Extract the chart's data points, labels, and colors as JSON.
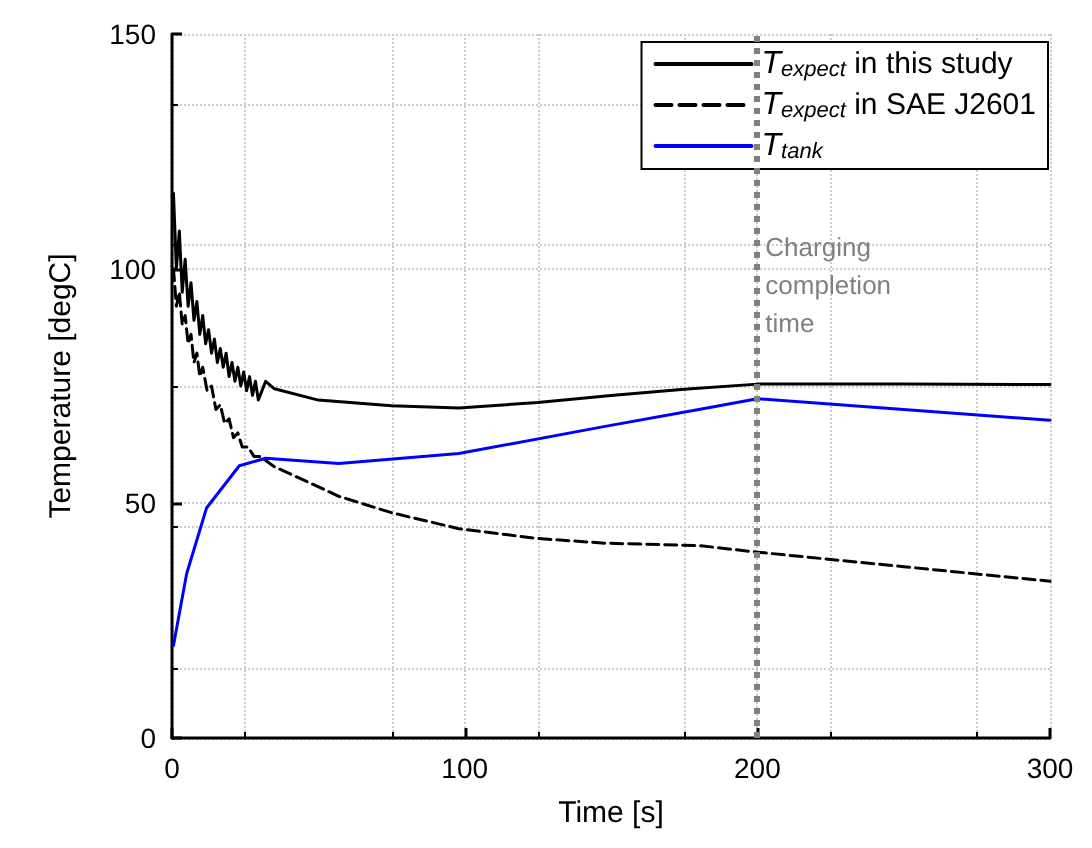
{
  "chart_data": {
    "type": "line",
    "xlabel": "Time [s]",
    "ylabel": "Temperature [degC]",
    "xlim": [
      0,
      300
    ],
    "xticks": [
      0,
      100,
      200,
      300
    ],
    "ylim": [
      0,
      150
    ],
    "yticks": [
      0,
      50,
      100,
      150
    ],
    "grid": true,
    "legend": "top right",
    "marker": "none",
    "series": [
      {
        "name": "T$_{expect}$ in this study",
        "color": "#000000",
        "line_style": "solid",
        "x": [
          0.5,
          1.5,
          2.5,
          3.5,
          4.5,
          5.5,
          6.5,
          7.5,
          8.5,
          9.5,
          10.5,
          11.5,
          12.5,
          13.5,
          14.5,
          15.5,
          16.5,
          17.5,
          18.5,
          19.5,
          20.5,
          21.5,
          22.5,
          23.5,
          24.5,
          25.5,
          26.5,
          27.5,
          28.5,
          29.5,
          32,
          35,
          50,
          75,
          98,
          125,
          150,
          175,
          200,
          250,
          300
        ],
        "values": [
          116,
          100,
          108,
          95,
          102,
          92,
          97,
          89,
          93,
          86,
          90,
          84,
          87,
          82,
          85,
          80,
          83,
          79,
          82,
          77,
          80,
          76,
          79,
          75,
          78,
          74,
          77,
          73,
          76,
          72,
          76,
          74.4,
          72,
          70.8,
          70.3,
          71.5,
          73,
          74.3,
          75.4,
          75.4,
          75.3
        ]
      },
      {
        "name": "T$_{expect}$ in SAE J2601",
        "color": "#000000",
        "line_style": "dashed",
        "x": [
          0.5,
          1.5,
          2.5,
          3.5,
          4.5,
          5.5,
          6.5,
          7.5,
          8.5,
          9.5,
          10.5,
          12,
          13.5,
          15,
          16.5,
          18,
          19.5,
          21,
          22.5,
          24,
          26,
          28,
          30,
          35,
          57,
          75,
          98,
          125,
          148,
          180,
          200,
          250,
          300
        ],
        "values": [
          100,
          92,
          95,
          88,
          90,
          84,
          86,
          80,
          82,
          77,
          79,
          74,
          75,
          70,
          71,
          67,
          68,
          64,
          65,
          62,
          62,
          60,
          60,
          57.8,
          51.5,
          48,
          44.6,
          42.5,
          41.5,
          41,
          39.6,
          36.5,
          33.4
        ]
      },
      {
        "name": "T$_{tank}$",
        "color": "#0000ff",
        "line_style": "solid",
        "x": [
          0.5,
          5,
          11.8,
          23,
          32,
          57,
          98,
          148,
          180,
          200,
          250,
          300
        ],
        "values": [
          19.7,
          35,
          49,
          58,
          59.6,
          58.5,
          60.6,
          66.4,
          70,
          72.3,
          70,
          67.7
        ]
      }
    ],
    "ref_lines": [
      {
        "axis": "x",
        "value": 200,
        "label": "Charging\ncompletion\ntime",
        "color": "#808080",
        "line_style": "dotted"
      }
    ]
  }
}
